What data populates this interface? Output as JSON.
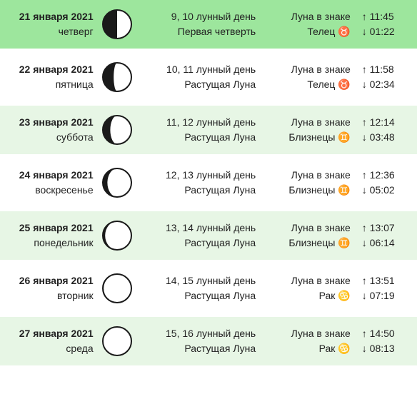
{
  "colors": {
    "highlight_bg": "#9de69d",
    "alt_bg": "#e7f6e5",
    "plain_bg": "#ffffff",
    "moon_dark": "#1a1a1a",
    "moon_light": "#ffffff",
    "moon_border": "#1a1a1a",
    "text": "#222222"
  },
  "rows": [
    {
      "date": "21 января 2021",
      "weekday": "четверг",
      "lunar_day": "9, 10 лунный день",
      "phase": "Первая четверть",
      "sign_label": "Луна в знаке",
      "sign_name": "Телец",
      "sign_emoji": "♉",
      "rise": "↑ 11:45",
      "set": "↓ 01:22",
      "bg_key": "highlight_bg",
      "moon_fill": 0.5
    },
    {
      "date": "22 января 2021",
      "weekday": "пятница",
      "lunar_day": "10, 11 лунный день",
      "phase": "Растущая Луна",
      "sign_label": "Луна в знаке",
      "sign_name": "Телец",
      "sign_emoji": "♉",
      "rise": "↑ 11:58",
      "set": "↓ 02:34",
      "bg_key": "plain_bg",
      "moon_fill": 0.62
    },
    {
      "date": "23 января 2021",
      "weekday": "суббота",
      "lunar_day": "11, 12 лунный день",
      "phase": "Растущая Луна",
      "sign_label": "Луна в знаке",
      "sign_name": "Близнецы",
      "sign_emoji": "♊",
      "rise": "↑ 12:14",
      "set": "↓ 03:48",
      "bg_key": "alt_bg",
      "moon_fill": 0.74
    },
    {
      "date": "24 января 2021",
      "weekday": "воскресенье",
      "lunar_day": "12, 13 лунный день",
      "phase": "Растущая Луна",
      "sign_label": "Луна в знаке",
      "sign_name": "Близнецы",
      "sign_emoji": "♊",
      "rise": "↑ 12:36",
      "set": "↓ 05:02",
      "bg_key": "plain_bg",
      "moon_fill": 0.84
    },
    {
      "date": "25 января 2021",
      "weekday": "понедельник",
      "lunar_day": "13, 14 лунный день",
      "phase": "Растущая Луна",
      "sign_label": "Луна в знаке",
      "sign_name": "Близнецы",
      "sign_emoji": "♊",
      "rise": "↑ 13:07",
      "set": "↓ 06:14",
      "bg_key": "alt_bg",
      "moon_fill": 0.92
    },
    {
      "date": "26 января 2021",
      "weekday": "вторник",
      "lunar_day": "14, 15 лунный день",
      "phase": "Растущая Луна",
      "sign_label": "Луна в знаке",
      "sign_name": "Рак",
      "sign_emoji": "♋",
      "rise": "↑ 13:51",
      "set": "↓ 07:19",
      "bg_key": "plain_bg",
      "moon_fill": 0.97
    },
    {
      "date": "27 января 2021",
      "weekday": "среда",
      "lunar_day": "15, 16 лунный день",
      "phase": "Растущая Луна",
      "sign_label": "Луна в знаке",
      "sign_name": "Рак",
      "sign_emoji": "♋",
      "rise": "↑ 14:50",
      "set": "↓ 08:13",
      "bg_key": "alt_bg",
      "moon_fill": 1.0
    }
  ]
}
